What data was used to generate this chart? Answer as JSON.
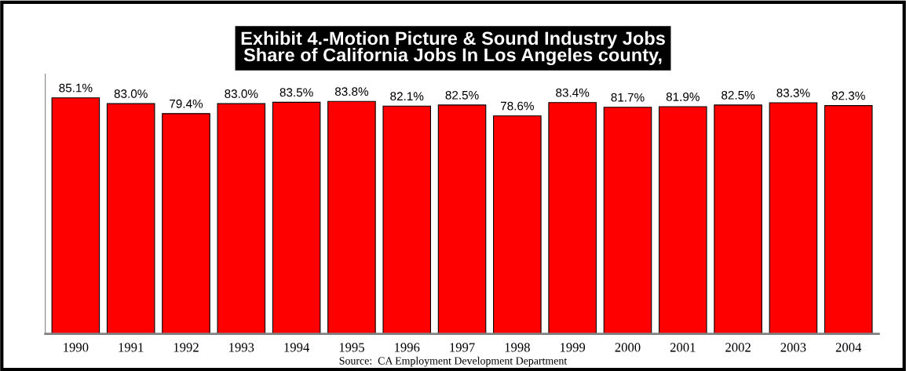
{
  "chart_data": {
    "type": "bar",
    "title": "Exhibit 4.-Motion Picture & Sound Industry Jobs\nShare of California Jobs In Los Angeles county,",
    "categories": [
      "1990",
      "1991",
      "1992",
      "1993",
      "1994",
      "1995",
      "1996",
      "1997",
      "1998",
      "1999",
      "2000",
      "2001",
      "2002",
      "2003",
      "2004"
    ],
    "values": [
      85.1,
      83.0,
      79.4,
      83.0,
      83.5,
      83.8,
      82.1,
      82.5,
      78.6,
      83.4,
      81.7,
      81.9,
      82.5,
      83.3,
      82.3
    ],
    "value_labels": [
      "85.1%",
      "83.0%",
      "79.4%",
      "83.0%",
      "83.5%",
      "83.8%",
      "82.1%",
      "82.5%",
      "78.6%",
      "83.4%",
      "81.7%",
      "81.9%",
      "82.5%",
      "83.3%",
      "82.3%"
    ],
    "color": "#ff0000",
    "tick_labels": "x",
    "annotations": [
      "Source:  CA Employment Development Department"
    ]
  }
}
